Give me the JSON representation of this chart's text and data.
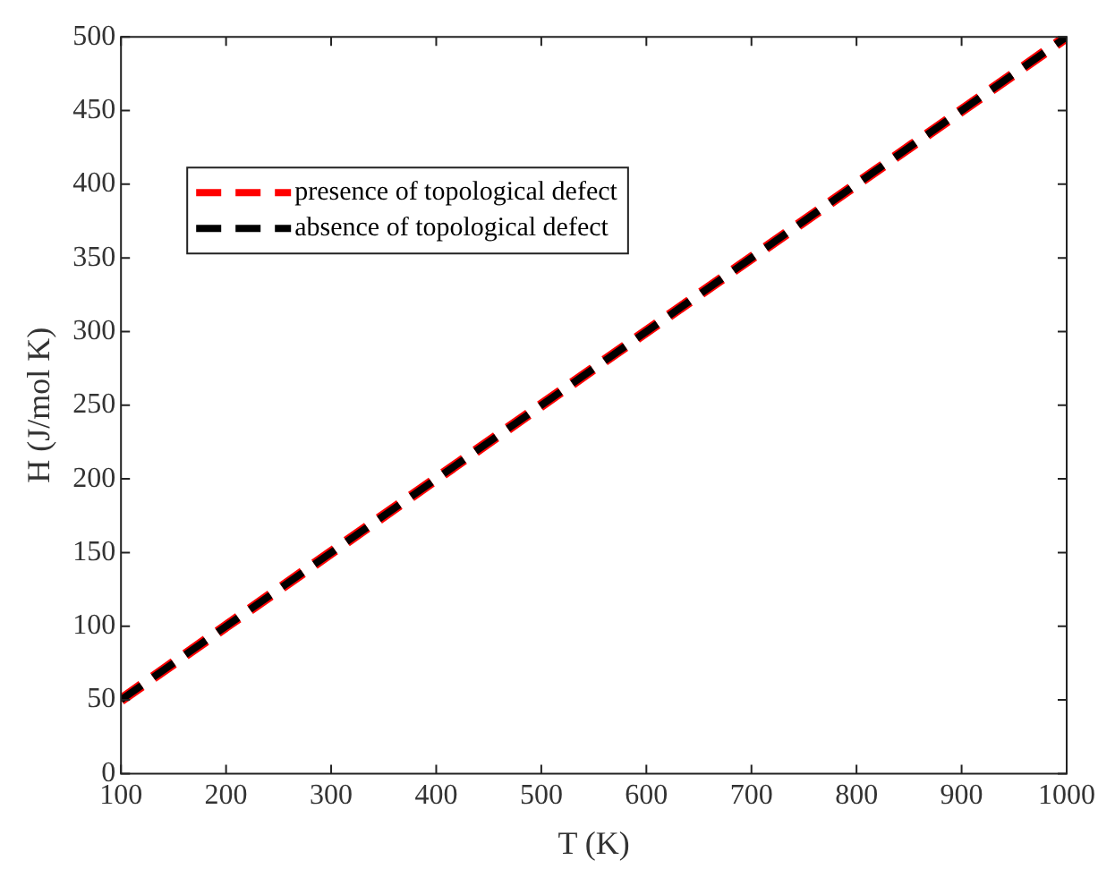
{
  "chart_data": {
    "type": "line",
    "xlabel": "T (K)",
    "ylabel": "H (J/mol K)",
    "x": [
      100,
      1000
    ],
    "series": [
      {
        "name": "presence of topological defect",
        "color": "#ff0000",
        "values": [
          50,
          500
        ]
      },
      {
        "name": "absence of topological defect",
        "color": "#000000",
        "values": [
          50,
          500
        ]
      }
    ],
    "xlim": [
      100,
      1000
    ],
    "xticks": [
      100,
      200,
      300,
      400,
      500,
      600,
      700,
      800,
      900,
      1000
    ],
    "ylim": [
      0,
      500
    ],
    "yticks": [
      0,
      50,
      100,
      150,
      200,
      250,
      300,
      350,
      400,
      450,
      500
    ],
    "grid": false,
    "legend": "top left",
    "line_style": "dashed",
    "marker": "none"
  }
}
